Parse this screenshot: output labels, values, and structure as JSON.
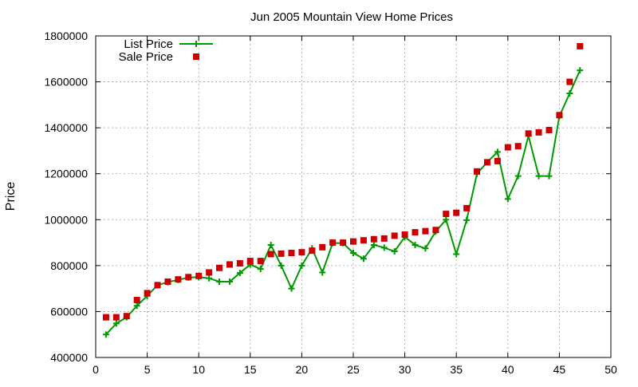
{
  "chart_data": {
    "type": "line",
    "title": "Jun 2005 Mountain View Home Prices",
    "xlabel": "",
    "ylabel": "Price",
    "xlim": [
      0,
      50
    ],
    "ylim": [
      400000,
      1800000
    ],
    "xticks": [
      0,
      5,
      10,
      15,
      20,
      25,
      30,
      35,
      40,
      45,
      50
    ],
    "yticks": [
      400000,
      600000,
      800000,
      1000000,
      1200000,
      1400000,
      1600000,
      1800000
    ],
    "grid": true,
    "legend_position": "top-left",
    "series": [
      {
        "name": "List Price",
        "style": "line-plus",
        "color": "#009900",
        "x": [
          1,
          2,
          3,
          4,
          5,
          6,
          7,
          8,
          9,
          10,
          11,
          12,
          13,
          14,
          15,
          16,
          17,
          18,
          19,
          20,
          21,
          22,
          23,
          24,
          25,
          26,
          27,
          28,
          29,
          30,
          31,
          32,
          33,
          34,
          35,
          36,
          37,
          38,
          39,
          40,
          41,
          42,
          43,
          44,
          45,
          46,
          47
        ],
        "values": [
          500000,
          548000,
          575000,
          625000,
          668000,
          715000,
          728000,
          738000,
          748000,
          750000,
          745000,
          730000,
          730000,
          768000,
          805000,
          785000,
          890000,
          800000,
          700000,
          800000,
          875000,
          770000,
          898000,
          898000,
          855000,
          830000,
          890000,
          878000,
          862000,
          925000,
          890000,
          875000,
          948000,
          1000000,
          850000,
          998000,
          1200000,
          1250000,
          1295000,
          1090000,
          1190000,
          1365000,
          1190000,
          1190000,
          1450000,
          1550000,
          1650000
        ]
      },
      {
        "name": "Sale Price",
        "style": "square-points",
        "color": "#cc0000",
        "x": [
          1,
          2,
          3,
          4,
          5,
          6,
          7,
          8,
          9,
          10,
          11,
          12,
          13,
          14,
          15,
          16,
          17,
          18,
          19,
          20,
          21,
          22,
          23,
          24,
          25,
          26,
          27,
          28,
          29,
          30,
          31,
          32,
          33,
          34,
          35,
          36,
          37,
          38,
          39,
          40,
          41,
          42,
          43,
          44,
          45,
          46,
          47
        ],
        "values": [
          575000,
          575000,
          580000,
          650000,
          680000,
          715000,
          730000,
          740000,
          750000,
          755000,
          770000,
          790000,
          805000,
          810000,
          820000,
          820000,
          850000,
          852000,
          855000,
          858000,
          865000,
          880000,
          900000,
          900000,
          905000,
          910000,
          915000,
          918000,
          930000,
          935000,
          945000,
          950000,
          955000,
          1025000,
          1030000,
          1050000,
          1210000,
          1250000,
          1255000,
          1315000,
          1320000,
          1375000,
          1380000,
          1390000,
          1455000,
          1600000,
          1755000
        ]
      }
    ]
  }
}
